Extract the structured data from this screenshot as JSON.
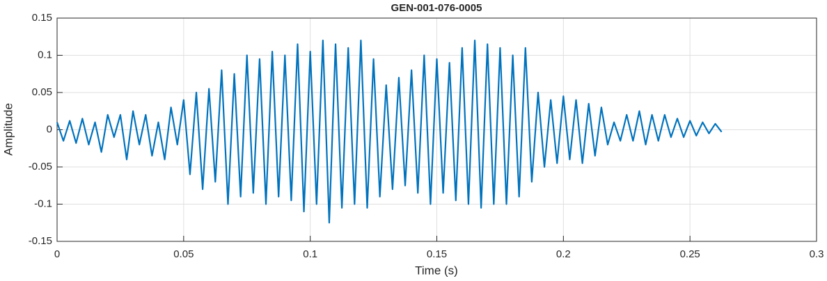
{
  "chart_data": {
    "type": "line",
    "title": "GEN-001-076-0005",
    "xlabel": "Time (s)",
    "ylabel": "Amplitude",
    "x": [
      0,
      0.0025,
      0.005,
      0.0075,
      0.01,
      0.0125,
      0.015,
      0.0175,
      0.02,
      0.0225,
      0.025,
      0.0275,
      0.03,
      0.0325,
      0.035,
      0.0375,
      0.04,
      0.0425,
      0.045,
      0.0475,
      0.05,
      0.0525,
      0.055,
      0.0575,
      0.06,
      0.0625,
      0.065,
      0.0675,
      0.07,
      0.0725,
      0.075,
      0.0775,
      0.08,
      0.0825,
      0.085,
      0.0875,
      0.09,
      0.0925,
      0.095,
      0.0975,
      0.1,
      0.1025,
      0.105,
      0.1075,
      0.11,
      0.1125,
      0.115,
      0.1175,
      0.12,
      0.1225,
      0.125,
      0.1275,
      0.13,
      0.1325,
      0.135,
      0.1375,
      0.14,
      0.1425,
      0.145,
      0.1475,
      0.15,
      0.1525,
      0.155,
      0.1575,
      0.16,
      0.1625,
      0.165,
      0.1675,
      0.17,
      0.1725,
      0.175,
      0.1775,
      0.18,
      0.1825,
      0.185,
      0.1875,
      0.19,
      0.1925,
      0.195,
      0.1975,
      0.2,
      0.2025,
      0.205,
      0.2075,
      0.21,
      0.2125,
      0.215,
      0.2175,
      0.22,
      0.2225,
      0.225,
      0.2275,
      0.23,
      0.2325,
      0.235,
      0.2375,
      0.24,
      0.2425,
      0.245,
      0.2475,
      0.25,
      0.2525,
      0.255,
      0.2575,
      0.26,
      0.2625
    ],
    "values": [
      0.01,
      -0.015,
      0.012,
      -0.018,
      0.015,
      -0.02,
      0.01,
      -0.03,
      0.02,
      -0.01,
      0.02,
      -0.04,
      0.025,
      -0.02,
      0.02,
      -0.035,
      0.01,
      -0.04,
      0.03,
      -0.02,
      0.04,
      -0.06,
      0.05,
      -0.08,
      0.055,
      -0.07,
      0.08,
      -0.1,
      0.075,
      -0.09,
      0.1,
      -0.085,
      0.095,
      -0.1,
      0.105,
      -0.09,
      0.1,
      -0.095,
      0.115,
      -0.11,
      0.105,
      -0.1,
      0.12,
      -0.125,
      0.115,
      -0.105,
      0.11,
      -0.1,
      0.12,
      -0.105,
      0.095,
      -0.09,
      0.06,
      -0.08,
      0.07,
      -0.075,
      0.08,
      -0.085,
      0.1,
      -0.1,
      0.095,
      -0.085,
      0.09,
      -0.095,
      0.11,
      -0.1,
      0.12,
      -0.105,
      0.115,
      -0.1,
      0.11,
      -0.1,
      0.1,
      -0.09,
      0.11,
      -0.07,
      0.05,
      -0.05,
      0.04,
      -0.045,
      0.045,
      -0.04,
      0.04,
      -0.045,
      0.035,
      -0.035,
      0.03,
      -0.02,
      0.01,
      -0.015,
      0.02,
      -0.015,
      0.025,
      -0.02,
      0.02,
      -0.015,
      0.02,
      -0.01,
      0.015,
      -0.01,
      0.012,
      -0.008,
      0.01,
      -0.005,
      0.008,
      -0.003
    ],
    "color": "#0072bd",
    "xlim": [
      0,
      0.3
    ],
    "xticks": [
      0,
      0.05,
      0.1,
      0.15,
      0.2,
      0.25,
      0.3
    ],
    "ylim": [
      -0.15,
      0.15
    ],
    "yticks": [
      -0.15,
      -0.1,
      -0.05,
      0,
      0.05,
      0.1,
      0.15
    ],
    "grid": true
  }
}
